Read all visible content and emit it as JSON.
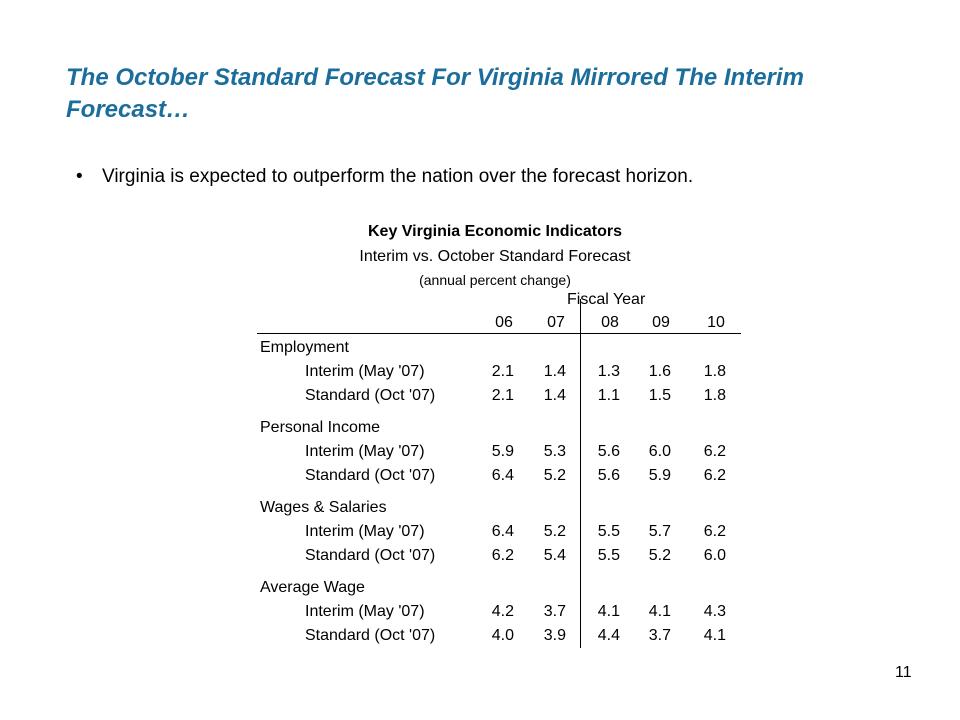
{
  "slide": {
    "title": "The October Standard Forecast For Virginia Mirrored The Interim Forecast…",
    "bullet_symbol": "•",
    "bullet": "Virginia is expected to outperform the nation over the forecast horizon.",
    "page_number": "11"
  },
  "table": {
    "title": "Key Virginia Economic Indicators",
    "subtitle": "Interim vs. October Standard Forecast",
    "unit_note": "(annual percent change)",
    "group_header": "Fiscal Year",
    "years": [
      "06",
      "07",
      "08",
      "09",
      "10"
    ],
    "sections": [
      {
        "name": "Employment",
        "rows": [
          {
            "label": "Interim (May '07)",
            "values": [
              "2.1",
              "1.4",
              "1.3",
              "1.6",
              "1.8"
            ]
          },
          {
            "label": "Standard (Oct '07)",
            "values": [
              "2.1",
              "1.4",
              "1.1",
              "1.5",
              "1.8"
            ]
          }
        ]
      },
      {
        "name": "Personal Income",
        "rows": [
          {
            "label": "Interim (May '07)",
            "values": [
              "5.9",
              "5.3",
              "5.6",
              "6.0",
              "6.2"
            ]
          },
          {
            "label": "Standard (Oct '07)",
            "values": [
              "6.4",
              "5.2",
              "5.6",
              "5.9",
              "6.2"
            ]
          }
        ]
      },
      {
        "name": "Wages & Salaries",
        "rows": [
          {
            "label": "Interim (May '07)",
            "values": [
              "6.4",
              "5.2",
              "5.5",
              "5.7",
              "6.2"
            ]
          },
          {
            "label": "Standard (Oct '07)",
            "values": [
              "6.2",
              "5.4",
              "5.5",
              "5.2",
              "6.0"
            ]
          }
        ]
      },
      {
        "name": "Average Wage",
        "rows": [
          {
            "label": "Interim (May '07)",
            "values": [
              "4.2",
              "3.7",
              "4.1",
              "4.1",
              "4.3"
            ]
          },
          {
            "label": "Standard (Oct '07)",
            "values": [
              "4.0",
              "3.9",
              "4.4",
              "3.7",
              "4.1"
            ]
          }
        ]
      }
    ]
  }
}
